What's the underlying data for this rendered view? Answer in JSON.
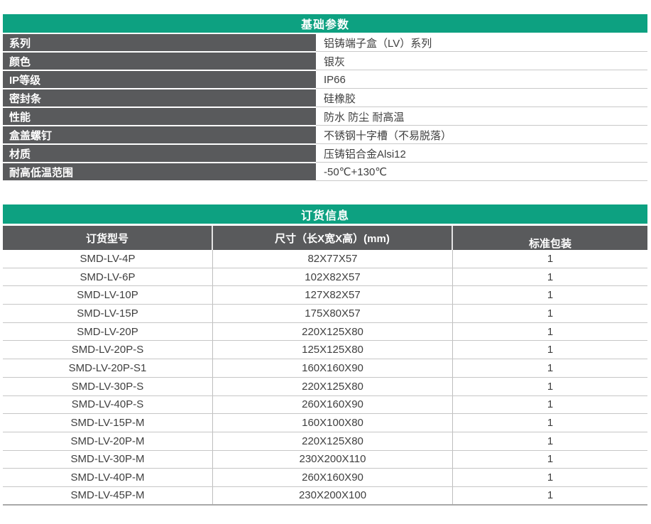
{
  "colors": {
    "accent_green": "#0da181",
    "header_gray": "#595a5c",
    "text_dark": "#3f3f3f",
    "grid_line": "#c6c6c6"
  },
  "basic_params": {
    "title": "基础参数",
    "rows": [
      {
        "label": "系列",
        "value": "铝铸端子盒（LV）系列"
      },
      {
        "label": "颜色",
        "value": "银灰"
      },
      {
        "label": "IP等级",
        "value": "IP66"
      },
      {
        "label": "密封条",
        "value": "硅橡胶"
      },
      {
        "label": "性能",
        "value": "防水 防尘 耐高温"
      },
      {
        "label": "盒盖螺钉",
        "value": "不锈钢十字槽（不易脱落）"
      },
      {
        "label": "材质",
        "value": "压铸铝合金Alsi12"
      },
      {
        "label": "耐高低温范围",
        "value": "-50℃+130℃"
      }
    ]
  },
  "order_info": {
    "title": "订货信息",
    "columns": [
      "订货型号",
      "尺寸（长X宽X高）(mm)",
      "标准包装"
    ],
    "rows": [
      {
        "model": "SMD-LV-4P",
        "size": "82X77X57",
        "pack": "1"
      },
      {
        "model": "SMD-LV-6P",
        "size": "102X82X57",
        "pack": "1"
      },
      {
        "model": "SMD-LV-10P",
        "size": "127X82X57",
        "pack": "1"
      },
      {
        "model": "SMD-LV-15P",
        "size": "175X80X57",
        "pack": "1"
      },
      {
        "model": "SMD-LV-20P",
        "size": "220X125X80",
        "pack": "1"
      },
      {
        "model": "SMD-LV-20P-S",
        "size": "125X125X80",
        "pack": "1"
      },
      {
        "model": "SMD-LV-20P-S1",
        "size": "160X160X90",
        "pack": "1"
      },
      {
        "model": "SMD-LV-30P-S",
        "size": "220X125X80",
        "pack": "1"
      },
      {
        "model": "SMD-LV-40P-S",
        "size": "260X160X90",
        "pack": "1"
      },
      {
        "model": "SMD-LV-15P-M",
        "size": "160X100X80",
        "pack": "1"
      },
      {
        "model": "SMD-LV-20P-M",
        "size": "220X125X80",
        "pack": "1"
      },
      {
        "model": "SMD-LV-30P-M",
        "size": "230X200X110",
        "pack": "1"
      },
      {
        "model": "SMD-LV-40P-M",
        "size": "260X160X90",
        "pack": "1"
      },
      {
        "model": "SMD-LV-45P-M",
        "size": "230X200X100",
        "pack": "1"
      }
    ]
  }
}
